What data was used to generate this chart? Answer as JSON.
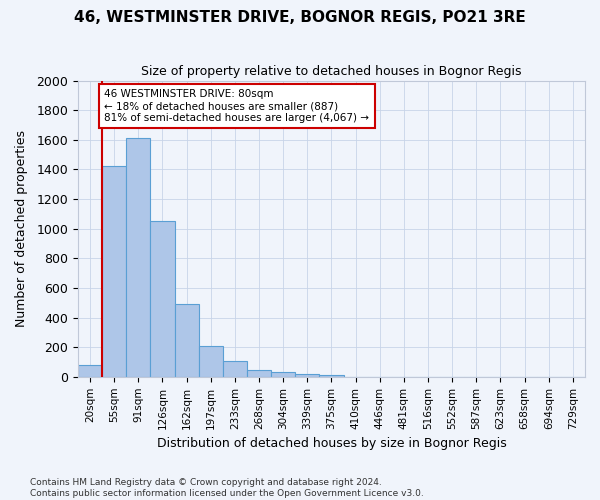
{
  "title1": "46, WESTMINSTER DRIVE, BOGNOR REGIS, PO21 3RE",
  "title2": "Size of property relative to detached houses in Bognor Regis",
  "xlabel": "Distribution of detached houses by size in Bognor Regis",
  "ylabel": "Number of detached properties",
  "bar_labels": [
    "20sqm",
    "55sqm",
    "91sqm",
    "126sqm",
    "162sqm",
    "197sqm",
    "233sqm",
    "268sqm",
    "304sqm",
    "339sqm",
    "375sqm",
    "410sqm",
    "446sqm",
    "481sqm",
    "516sqm",
    "552sqm",
    "587sqm",
    "623sqm",
    "658sqm",
    "694sqm",
    "729sqm"
  ],
  "bar_values": [
    80,
    1420,
    1610,
    1050,
    490,
    205,
    105,
    48,
    35,
    22,
    15,
    0,
    0,
    0,
    0,
    0,
    0,
    0,
    0,
    0,
    0
  ],
  "bar_color": "#aec6e8",
  "bar_edge_color": "#5a9fd4",
  "vline_x": 0.5,
  "annotation_text": "46 WESTMINSTER DRIVE: 80sqm\n← 18% of detached houses are smaller (887)\n81% of semi-detached houses are larger (4,067) →",
  "annotation_box_color": "#ffffff",
  "annotation_box_edge": "#cc0000",
  "vline_color": "#cc0000",
  "ylim": [
    0,
    2000
  ],
  "yticks": [
    0,
    200,
    400,
    600,
    800,
    1000,
    1200,
    1400,
    1600,
    1800,
    2000
  ],
  "footnote": "Contains HM Land Registry data © Crown copyright and database right 2024.\nContains public sector information licensed under the Open Government Licence v3.0.",
  "bg_color": "#f0f4fb",
  "plot_bg_color": "#f0f4fb",
  "grid_color": "#c8d4e8"
}
